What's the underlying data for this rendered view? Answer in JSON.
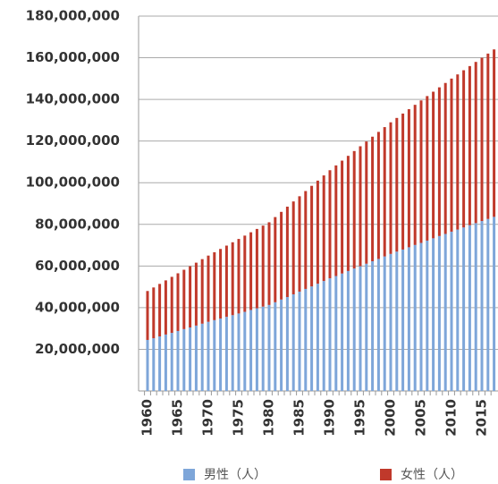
{
  "chart_data": {
    "type": "stacked-bar",
    "categories": [
      "1960",
      null,
      null,
      null,
      null,
      "1965",
      null,
      null,
      null,
      null,
      "1970",
      null,
      null,
      null,
      null,
      "1975",
      null,
      null,
      null,
      null,
      "1980",
      null,
      null,
      null,
      null,
      "1985",
      null,
      null,
      null,
      null,
      "1990",
      null,
      null,
      null,
      null,
      "1995",
      null,
      null,
      null,
      null,
      "2000",
      null,
      null,
      null,
      null,
      "2005",
      null,
      null,
      null,
      null,
      "2010",
      null,
      null,
      null,
      null,
      "2015",
      null,
      null
    ],
    "series": [
      {
        "name": "男性（人）",
        "color": "#7ea6d9",
        "values": [
          24500000,
          25300000,
          26200000,
          27100000,
          27900000,
          28800000,
          29700000,
          30500000,
          31400000,
          32300000,
          33200000,
          34000000,
          34800000,
          35600000,
          36400000,
          37200000,
          38000000,
          38900000,
          39700000,
          40500000,
          41300000,
          42600000,
          43900000,
          45100000,
          46400000,
          47700000,
          49000000,
          50200000,
          51500000,
          52800000,
          54100000,
          55200000,
          56400000,
          57600000,
          58800000,
          59900000,
          61100000,
          62300000,
          63400000,
          64600000,
          65800000,
          66900000,
          67900000,
          69000000,
          70100000,
          71100000,
          72200000,
          73300000,
          74400000,
          75400000,
          76500000,
          77500000,
          78500000,
          79600000,
          80600000,
          81600000,
          82600000,
          83600000
        ]
      },
      {
        "name": "女性（人）",
        "color": "#c0392b",
        "values": [
          23500000,
          24400000,
          25200000,
          26000000,
          26900000,
          27700000,
          28500000,
          29400000,
          30200000,
          31000000,
          31800000,
          32600000,
          33400000,
          34200000,
          35000000,
          35800000,
          36600000,
          37300000,
          38100000,
          38900000,
          39700000,
          40900000,
          42100000,
          43400000,
          44600000,
          45800000,
          47000000,
          48300000,
          49500000,
          50700000,
          51900000,
          53100000,
          54200000,
          55300000,
          56400000,
          57600000,
          58700000,
          59800000,
          61000000,
          62100000,
          63200000,
          64200000,
          65300000,
          66300000,
          67300000,
          68400000,
          69400000,
          70400000,
          71400000,
          72500000,
          73500000,
          74500000,
          75500000,
          76400000,
          77400000,
          78400000,
          79400000,
          80400000
        ]
      }
    ],
    "ylim": [
      0,
      180000000
    ],
    "yticks": [
      {
        "value": 20000000,
        "label": "20,000,000"
      },
      {
        "value": 40000000,
        "label": "40,000,000"
      },
      {
        "value": 60000000,
        "label": "60,000,000"
      },
      {
        "value": 80000000,
        "label": "80,000,000"
      },
      {
        "value": 100000000,
        "label": "100,000,000"
      },
      {
        "value": 120000000,
        "label": "120,000,000"
      },
      {
        "value": 140000000,
        "label": "140,000,000"
      },
      {
        "value": 160000000,
        "label": "160,000,000"
      },
      {
        "value": 180000000,
        "label": "180,000,000"
      }
    ],
    "grid": true
  }
}
